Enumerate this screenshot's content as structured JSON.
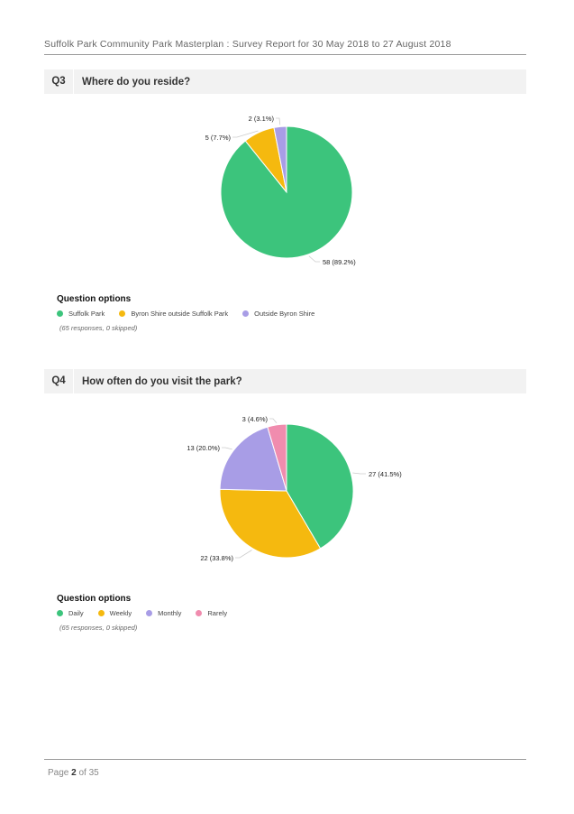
{
  "header": {
    "title": "Suffolk Park Community Park Masterplan : Survey Report for 30 May 2018 to 27 August 2018"
  },
  "footer": {
    "page_prefix": "Page",
    "page_current": "2",
    "page_of": "of",
    "page_total": "35"
  },
  "chart_data": [
    {
      "id": "q3",
      "type": "pie",
      "question_number": "Q3",
      "title": "Where do you reside?",
      "options_title": "Question options",
      "categories": [
        "Suffolk Park",
        "Byron Shire outside Suffolk Park",
        "Outside Byron Shire"
      ],
      "values": [
        58,
        5,
        2
      ],
      "percentages": [
        89.2,
        7.7,
        3.1
      ],
      "labels": [
        "58 (89.2%)",
        "5 (7.7%)",
        "2 (3.1%)"
      ],
      "colors": [
        "#3cc47c",
        "#f5b90f",
        "#a89de6"
      ],
      "responses_note": "(65 responses, 0 skipped)"
    },
    {
      "id": "q4",
      "type": "pie",
      "question_number": "Q4",
      "title": "How often do you visit the park?",
      "options_title": "Question options",
      "categories": [
        "Daily",
        "Weekly",
        "Monthly",
        "Rarely"
      ],
      "values": [
        27,
        22,
        13,
        3
      ],
      "percentages": [
        41.5,
        33.8,
        20.0,
        4.6
      ],
      "labels": [
        "27 (41.5%)",
        "22 (33.8%)",
        "13 (20.0%)",
        "3 (4.6%)"
      ],
      "colors": [
        "#3cc47c",
        "#f5b90f",
        "#a89de6",
        "#f08cae"
      ],
      "responses_note": "(65 responses, 0 skipped)"
    }
  ]
}
